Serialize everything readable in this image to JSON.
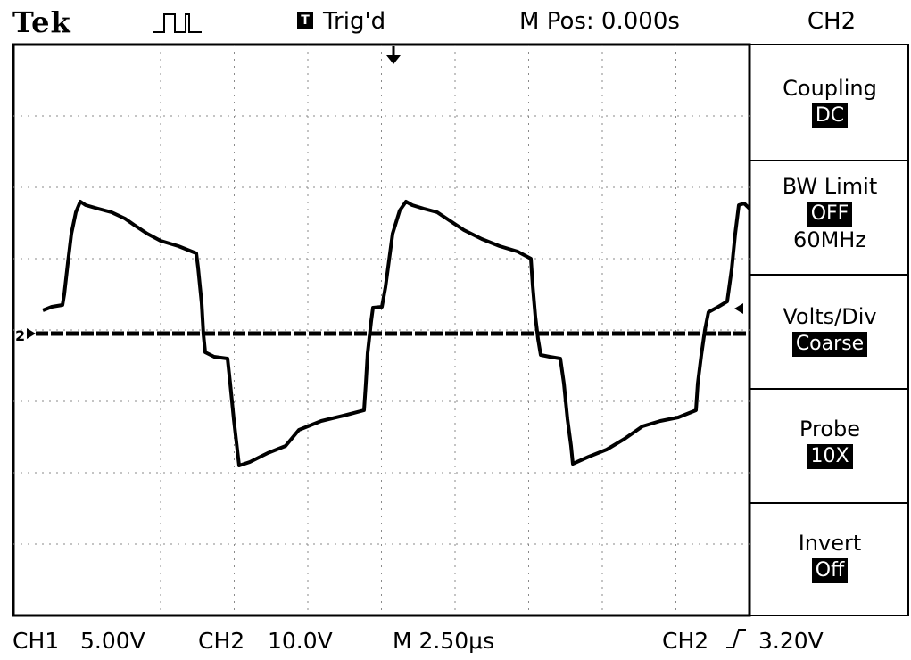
{
  "header": {
    "brand": "Tek",
    "trigger_icon": "T",
    "trigger_status": "Trig'd",
    "m_pos": "M Pos: 0.000s",
    "channel": "CH2"
  },
  "menu": {
    "coupling": {
      "label": "Coupling",
      "value": "DC"
    },
    "bw_limit": {
      "label": "BW Limit",
      "value": "OFF",
      "sub": "60MHz"
    },
    "volts_div": {
      "label": "Volts/Div",
      "value": "Coarse"
    },
    "probe": {
      "label": "Probe",
      "value": "10X"
    },
    "invert": {
      "label": "Invert",
      "value": "Off"
    }
  },
  "footer": {
    "ch1_label": "CH1",
    "ch1_scale": "5.00V",
    "ch2_label": "CH2",
    "ch2_scale": "10.0V",
    "timebase": "M 2.50μs",
    "trig_source": "CH2",
    "trig_slope_icon": "rising-edge-icon",
    "trig_level": "3.20V"
  },
  "markers": {
    "ch2_ground": "2"
  },
  "colors": {
    "trace": "#000000",
    "grid": "#8a8a8a",
    "background": "#ffffff"
  }
}
